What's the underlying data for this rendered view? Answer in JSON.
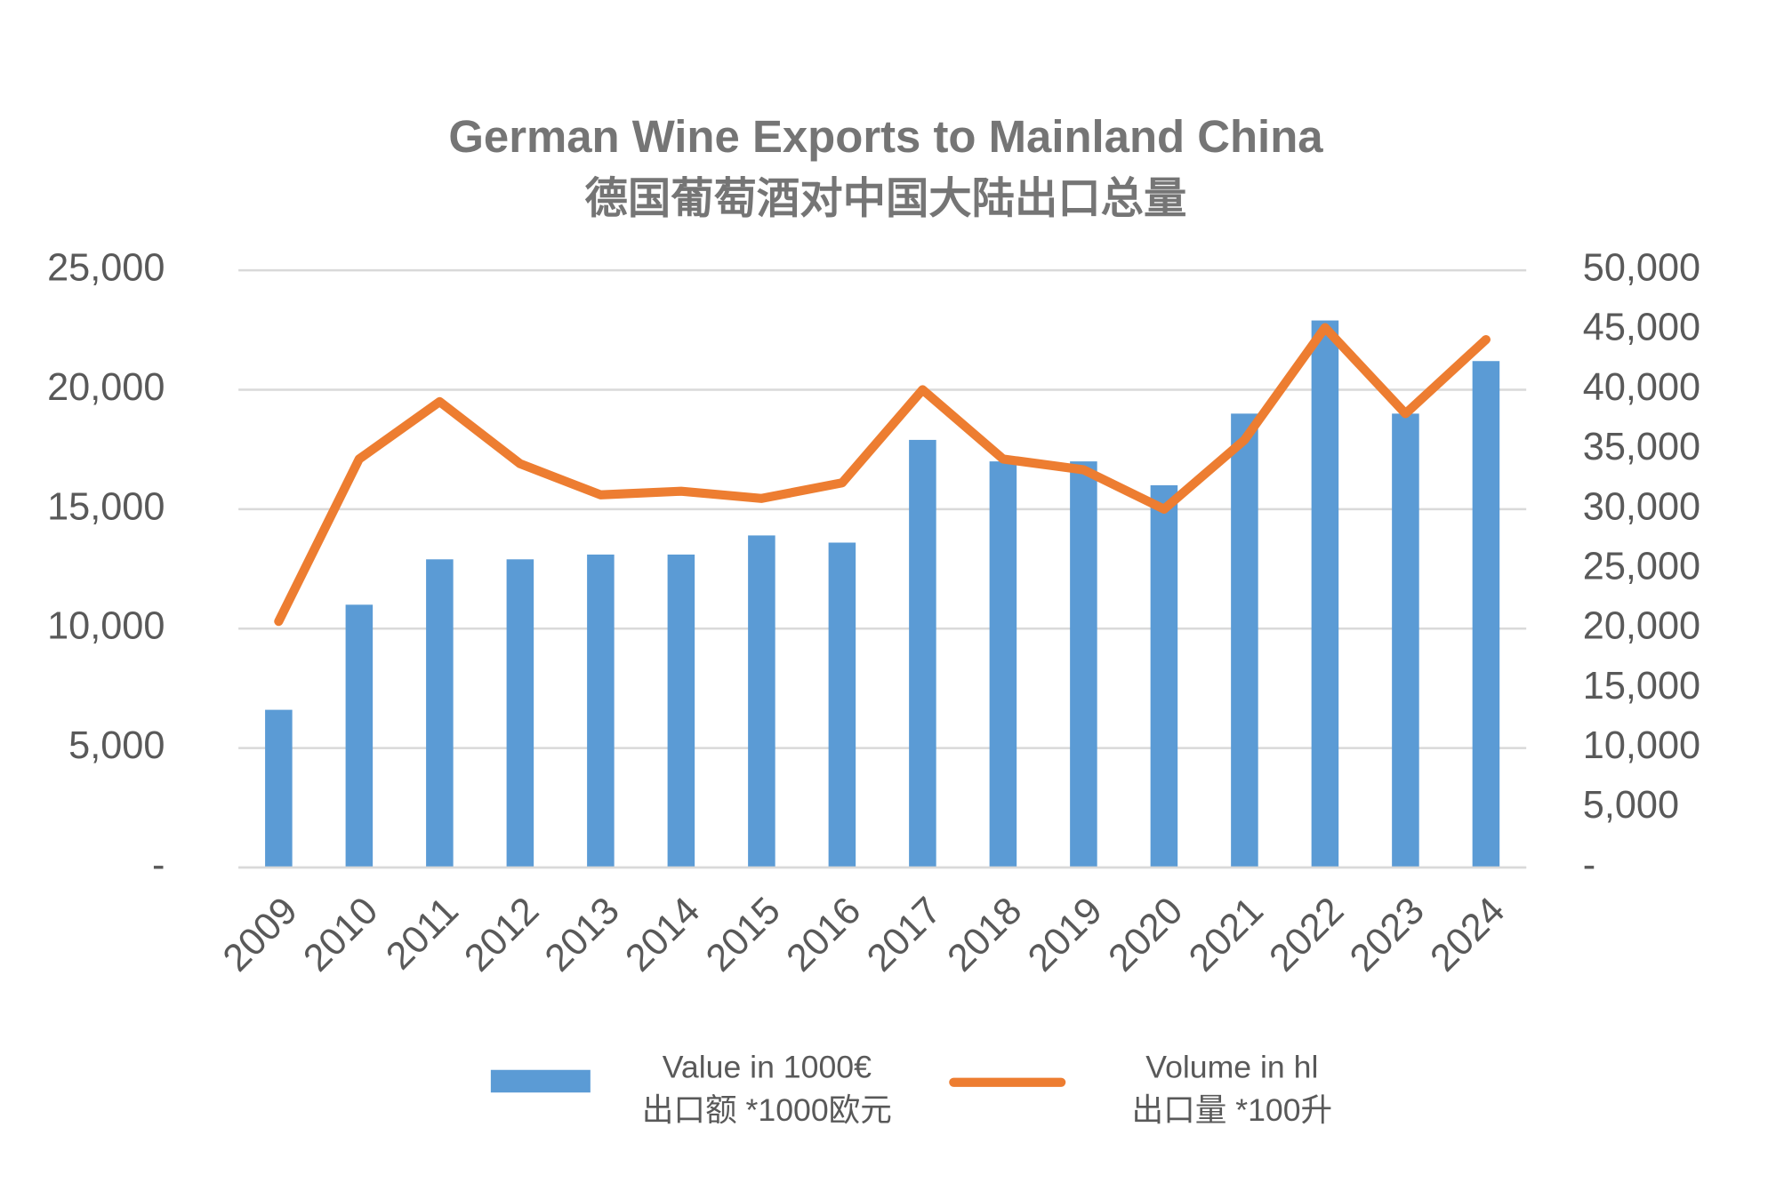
{
  "chart_data": {
    "type": "bar",
    "title": "German Wine Exports to Mainland China",
    "subtitle": "德国葡萄酒对中国大陆出口总量",
    "categories": [
      "2009",
      "2010",
      "2011",
      "2012",
      "2013",
      "2014",
      "2015",
      "2016",
      "2017",
      "2018",
      "2019",
      "2020",
      "2021",
      "2022",
      "2023",
      "2024"
    ],
    "series": [
      {
        "name": "Value in 1000€\n出口额 *1000欧元",
        "type": "bar",
        "color": "#5b9bd5",
        "values": [
          6600,
          11000,
          12900,
          12900,
          13100,
          13100,
          13900,
          13600,
          17900,
          17000,
          17000,
          16000,
          19000,
          22900,
          19000,
          21200
        ]
      },
      {
        "name": "Volume in hl\n出口量 *100升",
        "type": "line",
        "color": "#ed7d31",
        "axis": "y2",
        "values": [
          20600,
          34200,
          39000,
          33800,
          31200,
          31500,
          30900,
          32200,
          40000,
          34200,
          33300,
          30000,
          35800,
          45200,
          38000,
          44200
        ]
      }
    ],
    "ylim": [
      0,
      25000
    ],
    "yticks": [
      {
        "value": 0,
        "label": "-"
      },
      {
        "value": 5000,
        "label": "5,000"
      },
      {
        "value": 10000,
        "label": "10,000"
      },
      {
        "value": 15000,
        "label": "15,000"
      },
      {
        "value": 20000,
        "label": "20,000"
      },
      {
        "value": 25000,
        "label": "25,000"
      }
    ],
    "y2lim": [
      0,
      50000
    ],
    "y2ticks": [
      {
        "value": 0,
        "label": "-"
      },
      {
        "value": 5000,
        "label": "5,000"
      },
      {
        "value": 10000,
        "label": "10,000"
      },
      {
        "value": 15000,
        "label": "15,000"
      },
      {
        "value": 20000,
        "label": "20,000"
      },
      {
        "value": 25000,
        "label": "25,000"
      },
      {
        "value": 30000,
        "label": "30,000"
      },
      {
        "value": 35000,
        "label": "35,000"
      },
      {
        "value": 40000,
        "label": "40,000"
      },
      {
        "value": 45000,
        "label": "45,000"
      },
      {
        "value": 50000,
        "label": "50,000"
      }
    ],
    "grid": true,
    "legend": "bottom"
  }
}
